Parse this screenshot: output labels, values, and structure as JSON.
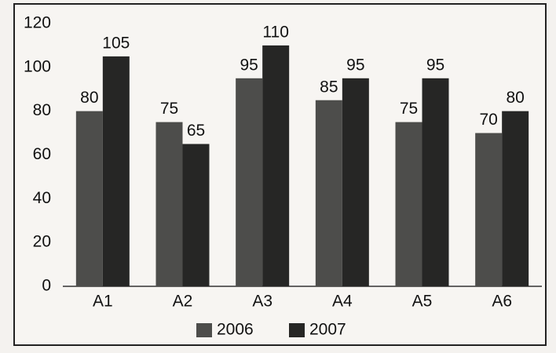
{
  "chart_data": {
    "type": "bar",
    "categories": [
      "A1",
      "A2",
      "A3",
      "A4",
      "A5",
      "A6"
    ],
    "series": [
      {
        "name": "2006",
        "color": "#4d4d4b",
        "values": [
          80,
          75,
          95,
          85,
          75,
          70
        ]
      },
      {
        "name": "2007",
        "color": "#262625",
        "values": [
          105,
          65,
          110,
          95,
          95,
          80
        ]
      }
    ],
    "ylim": [
      0,
      120
    ],
    "yticks": [
      0,
      20,
      40,
      60,
      80,
      100,
      120
    ],
    "grid": false,
    "legend": "bottom"
  }
}
